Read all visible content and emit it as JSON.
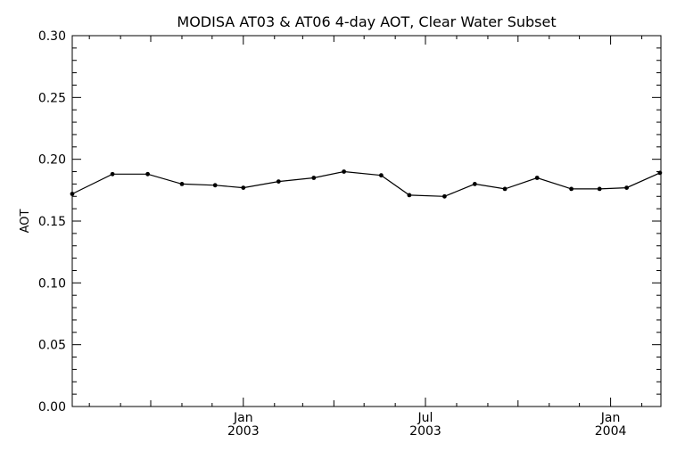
{
  "chart_data": {
    "type": "line",
    "title": "MODISA AT03 & AT06 4-day AOT, Clear Water Subset",
    "ylabel": "AOT",
    "xlabel": "",
    "ylim": [
      0.0,
      0.3
    ],
    "yticks": [
      "0.00",
      "0.05",
      "0.10",
      "0.15",
      "0.20",
      "0.25",
      "0.30"
    ],
    "xlim": [
      "2002-07-15",
      "2004-02-20"
    ],
    "xticks": [
      {
        "date": "2003-01-01",
        "month": "Jan",
        "year": "2003"
      },
      {
        "date": "2003-07-01",
        "month": "Jul",
        "year": "2003"
      },
      {
        "date": "2004-01-01",
        "month": "Jan",
        "year": "2004"
      }
    ],
    "grid": false,
    "series": [
      {
        "color": "#000000",
        "x": [
          "2002-07-15",
          "2002-08-24",
          "2002-09-28",
          "2002-11-01",
          "2002-12-04",
          "2003-01-01",
          "2003-02-05",
          "2003-03-12",
          "2003-04-11",
          "2003-05-18",
          "2003-06-15",
          "2003-07-20",
          "2003-08-19",
          "2003-09-18",
          "2003-10-20",
          "2003-11-23",
          "2003-12-21",
          "2004-01-17",
          "2004-02-19"
        ],
        "values": [
          0.172,
          0.188,
          0.188,
          0.18,
          0.179,
          0.177,
          0.182,
          0.185,
          0.19,
          0.187,
          0.171,
          0.17,
          0.18,
          0.176,
          0.185,
          0.176,
          0.176,
          0.177,
          0.189
        ]
      }
    ]
  }
}
